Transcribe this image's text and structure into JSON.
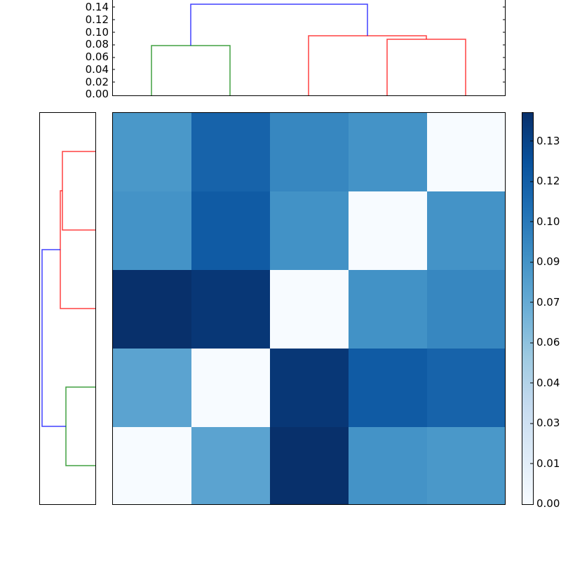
{
  "chart_data": {
    "type": "heatmap",
    "title": "",
    "description": "Clustered distance matrix heatmap with column dendrogram (top) and row dendrogram (left), Blues colormap",
    "matrix": [
      [
        0.072,
        0.115,
        0.085,
        0.078,
        0.0
      ],
      [
        0.078,
        0.12,
        0.078,
        0.0,
        0.078
      ],
      [
        0.137,
        0.133,
        0.0,
        0.078,
        0.085
      ],
      [
        0.066,
        0.0,
        0.133,
        0.12,
        0.115
      ],
      [
        0.0,
        0.066,
        0.137,
        0.078,
        0.072
      ]
    ],
    "row_labels": [],
    "col_labels": [],
    "colormap": "Blues",
    "vmin": 0.0,
    "vmax": 0.137,
    "colorbar": {
      "tick_labels": [
        "0.00",
        "0.01",
        "0.03",
        "0.04",
        "0.06",
        "0.07",
        "0.09",
        "0.10",
        "0.12",
        "0.13"
      ],
      "tick_values": [
        0.0,
        0.0152,
        0.0304,
        0.0456,
        0.0608,
        0.076,
        0.0912,
        0.1064,
        0.1216,
        0.1368
      ]
    },
    "top_dendrogram": {
      "ylabel": "",
      "ylim": [
        0.0,
        0.15
      ],
      "tick_labels": [
        "0.00",
        "0.02",
        "0.04",
        "0.06",
        "0.08",
        "0.10",
        "0.12",
        "0.14"
      ],
      "tick_values": [
        0.0,
        0.02,
        0.04,
        0.06,
        0.08,
        0.1,
        0.12,
        0.14
      ],
      "links": [
        {
          "leaves": [
            0,
            1
          ],
          "height": 0.08,
          "color": "#008000"
        },
        {
          "leaves": [
            3,
            4
          ],
          "height": 0.09,
          "color": "#ff0000"
        },
        {
          "leaves": [
            2,
            "(3,4)"
          ],
          "height": 0.096,
          "color": "#ff0000"
        },
        {
          "leaves": [
            "(0,1)",
            "(2,3,4)"
          ],
          "height": 0.146,
          "color": "#0000ff"
        }
      ]
    },
    "left_dendrogram": {
      "orientation": "right",
      "links": [
        {
          "leaves": [
            "row0",
            "row1"
          ],
          "height": 0.09,
          "color": "#ff0000"
        },
        {
          "leaves": [
            "(row0,row1)",
            "row2"
          ],
          "height": 0.096,
          "color": "#ff0000"
        },
        {
          "leaves": [
            "row3",
            "row4"
          ],
          "height": 0.08,
          "color": "#008000"
        },
        {
          "leaves": [
            "(row0,row1,row2)",
            "(row3,row4)"
          ],
          "height": 0.146,
          "color": "#0000ff"
        }
      ]
    }
  },
  "colors": {
    "cluster_green": "#008000",
    "cluster_red": "#ff0000",
    "link_blue": "#0000ff",
    "cells": [
      [
        "#4a98c9",
        "#1763aa",
        "#3787c0",
        "#4493c7",
        "#f7fbff"
      ],
      [
        "#4493c7",
        "#105ba4",
        "#4292c6",
        "#f7fbff",
        "#4493c7"
      ],
      [
        "#08306b",
        "#083776",
        "#f7fbff",
        "#4292c6",
        "#3787c0"
      ],
      [
        "#5ba3d0",
        "#f7fbff",
        "#083776",
        "#105ba4",
        "#1763aa"
      ],
      [
        "#f7fbff",
        "#5ba3d0",
        "#08306b",
        "#4493c7",
        "#4a98c9"
      ]
    ]
  },
  "top_axis_labels": [
    "0.14",
    "0.12",
    "0.10",
    "0.08",
    "0.06",
    "0.04",
    "0.02",
    "0.00"
  ],
  "colorbar_labels": [
    "0.13",
    "0.12",
    "0.10",
    "0.09",
    "0.07",
    "0.06",
    "0.04",
    "0.03",
    "0.01",
    "0.00"
  ]
}
